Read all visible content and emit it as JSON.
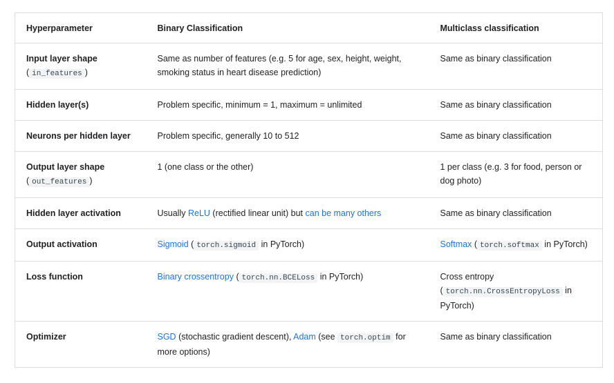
{
  "headers": [
    "Hyperparameter",
    "Binary Classification",
    "Multiclass classification"
  ],
  "rows": [
    {
      "param": "Input layer shape",
      "param_code": "in_features",
      "binary": {
        "text": "Same as number of features (e.g. 5 for age, sex, height, weight, smoking status in heart disease prediction)"
      },
      "multi": {
        "text": "Same as binary classification"
      }
    },
    {
      "param": "Hidden layer(s)",
      "binary": {
        "text": "Problem specific, minimum = 1, maximum = unlimited"
      },
      "multi": {
        "text": "Same as binary classification"
      }
    },
    {
      "param": "Neurons per hidden layer",
      "binary": {
        "text": "Problem specific, generally 10 to 512"
      },
      "multi": {
        "text": "Same as binary classification"
      }
    },
    {
      "param": "Output layer shape",
      "param_code": "out_features",
      "binary": {
        "text": "1 (one class or the other)"
      },
      "multi": {
        "text": "1 per class (e.g. 3 for food, person or dog photo)"
      }
    },
    {
      "param": "Hidden layer activation",
      "binary": {
        "pre": "Usually ",
        "link1": "ReLU",
        "mid": " (rectified linear unit) but ",
        "link2": "can be many others"
      },
      "multi": {
        "text": "Same as binary classification"
      }
    },
    {
      "param": "Output activation",
      "binary": {
        "link": "Sigmoid",
        "open": " (",
        "code": "torch.sigmoid",
        "close": " in PyTorch)"
      },
      "multi": {
        "link": "Softmax",
        "open": " (",
        "code": "torch.softmax",
        "close": " in PyTorch)"
      }
    },
    {
      "param": "Loss function",
      "binary": {
        "link": "Binary crossentropy",
        "open": " (",
        "code": "torch.nn.BCELoss",
        "close": " in PyTorch)"
      },
      "multi": {
        "pre": "Cross entropy",
        "open": "(",
        "code": "torch.nn.CrossEntropyLoss",
        "close": " in PyTorch)"
      }
    },
    {
      "param": "Optimizer",
      "binary": {
        "link1": "SGD",
        "mid": " (stochastic gradient descent), ",
        "link2": "Adam",
        "mid2": " (see ",
        "code": "torch.optim",
        "close": " for more options)"
      },
      "multi": {
        "text": "Same as binary classification"
      }
    }
  ],
  "paren_open": "(",
  "paren_close": ")"
}
